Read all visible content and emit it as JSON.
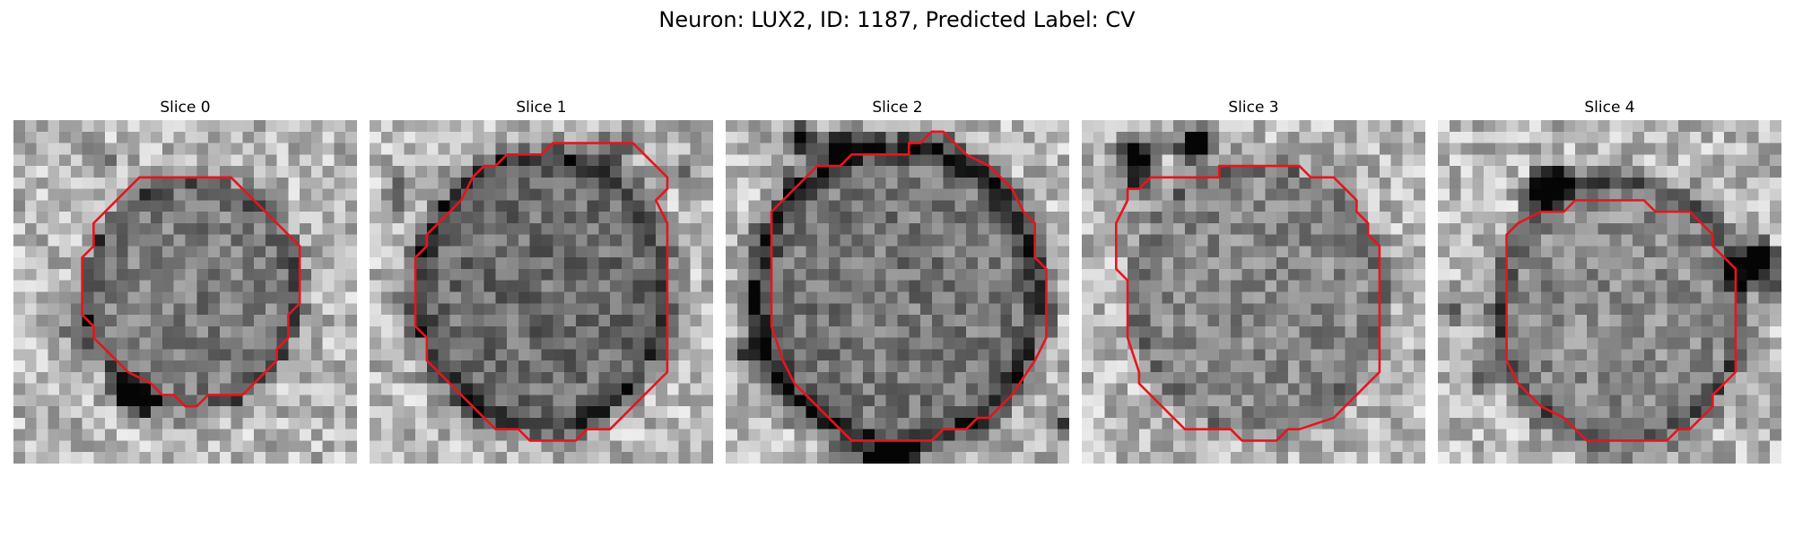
{
  "figure": {
    "title": "Neuron: LUX2, ID: 1187, Predicted Label: CV"
  },
  "colors": {
    "outline": "#e8141c",
    "background": "#ffffff"
  },
  "slices": [
    {
      "label": "Slice 0"
    },
    {
      "label": "Slice 1"
    },
    {
      "label": "Slice 2"
    },
    {
      "label": "Slice 3"
    },
    {
      "label": "Slice 4"
    }
  ]
}
